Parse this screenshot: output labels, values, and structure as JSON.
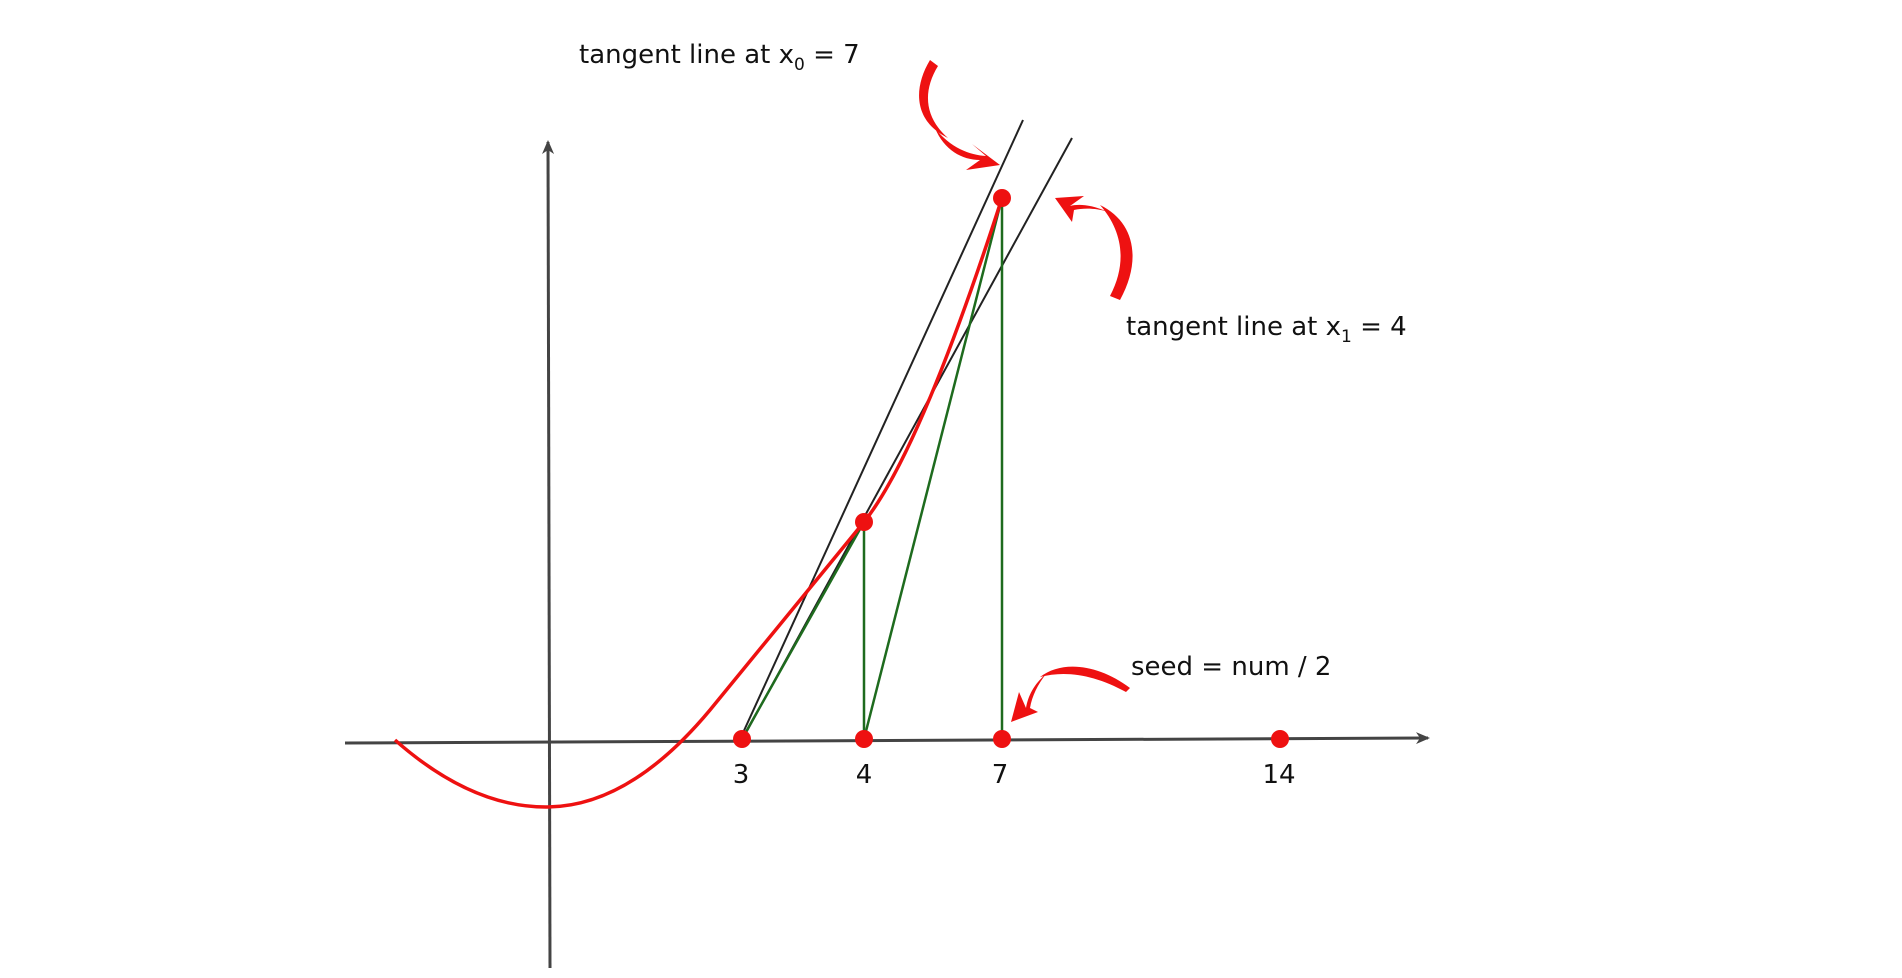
{
  "labels": {
    "tangent_x0": {
      "prefix": "tangent line at x",
      "sub": "0",
      "suffix": " = 7"
    },
    "tangent_x1": {
      "prefix": "tangent line at x",
      "sub": "1",
      "suffix": " = 4"
    },
    "seed": "seed = num / 2"
  },
  "ticks": [
    "3",
    "4",
    "7",
    "14"
  ],
  "colors": {
    "curve": "#ee1111",
    "points": "#ee1111",
    "green": "#1e6b1e",
    "tangent": "#222222",
    "axis": "#444444",
    "arrow": "#ee1111"
  }
}
